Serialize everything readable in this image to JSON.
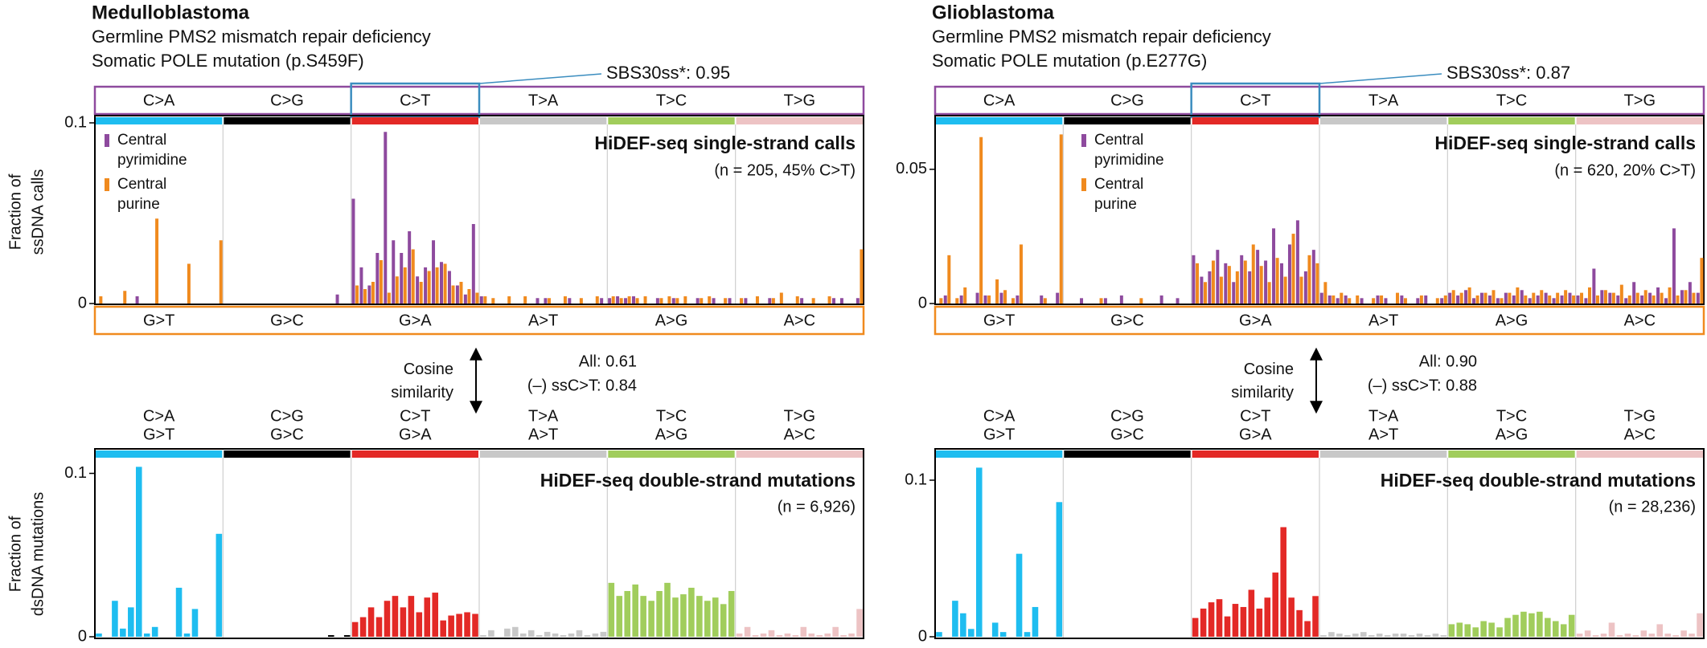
{
  "chart_data": [
    {
      "type": "bar",
      "title": "Medulloblastoma",
      "title_color": "#d7282f",
      "subtitle": [
        "Germline PMS2 mismatch repair deficiency",
        "Somatic POLE mutation (p.S459F)"
      ],
      "annotation": "SBS30ss*: 0.95",
      "annotation_color": "#3b8dbf",
      "chart_label": "HiDEF-seq single-strand calls",
      "n_label": "(n = 205, 45% C>T)",
      "ylabel": [
        "Fraction of",
        "ssDNA calls"
      ],
      "ylim": [
        0,
        0.104
      ],
      "yticks": [
        0,
        0.1
      ],
      "groups": [
        {
          "name": "C>A",
          "complement": "G>T",
          "color": "#1ebdf0"
        },
        {
          "name": "C>G",
          "complement": "G>C",
          "color": "#000000"
        },
        {
          "name": "C>T",
          "complement": "G>A",
          "color": "#e32926"
        },
        {
          "name": "T>A",
          "complement": "A>T",
          "color": "#c8c8c8"
        },
        {
          "name": "T>C",
          "complement": "A>G",
          "color": "#a1cd5c"
        },
        {
          "name": "T>G",
          "complement": "A>C",
          "color": "#edc3c4"
        }
      ],
      "series": [
        {
          "name": "Central pyrimidine",
          "color": "#8e4a9e",
          "values": [
            0,
            0,
            0,
            0,
            0,
            0.004,
            0,
            0,
            0,
            0,
            0,
            0,
            0,
            0,
            0,
            0,
            0,
            0,
            0,
            0,
            0,
            0,
            0,
            0,
            0,
            0,
            0,
            0,
            0,
            0,
            0.005,
            0,
            0.058,
            0.02,
            0.01,
            0.028,
            0.095,
            0.035,
            0.028,
            0.04,
            0.015,
            0.02,
            0.035,
            0.023,
            0.018,
            0.01,
            0.005,
            0.044,
            0.004,
            0,
            0,
            0,
            0,
            0,
            0,
            0.003,
            0.003,
            0,
            0,
            0.003,
            0,
            0,
            0,
            0.003,
            0.003,
            0.004,
            0.003,
            0.004,
            0,
            0,
            0.003,
            0,
            0.003,
            0,
            0,
            0.003,
            0,
            0.003,
            0,
            0.003,
            0,
            0.003,
            0,
            0,
            0.003,
            0,
            0,
            0,
            0.003,
            0,
            0,
            0,
            0.003,
            0.003,
            0,
            0.003
          ]
        },
        {
          "name": "Central purine",
          "color": "#f08a1e",
          "values": [
            0.004,
            0,
            0,
            0.007,
            0,
            0,
            0,
            0.047,
            0,
            0,
            0,
            0.022,
            0,
            0,
            0,
            0.035,
            0,
            0,
            0,
            0,
            0,
            0,
            0,
            0,
            0,
            0,
            0,
            0,
            0,
            0,
            0,
            0,
            0.01,
            0.008,
            0.012,
            0.024,
            0.006,
            0.015,
            0.02,
            0.03,
            0.012,
            0.018,
            0.02,
            0.022,
            0.01,
            0.012,
            0.008,
            0.006,
            0.004,
            0.003,
            0,
            0.004,
            0,
            0.004,
            0,
            0,
            0.003,
            0,
            0.004,
            0,
            0.003,
            0,
            0.004,
            0,
            0.004,
            0.003,
            0.004,
            0.003,
            0.004,
            0,
            0.003,
            0.004,
            0.003,
            0.004,
            0,
            0.003,
            0.004,
            0,
            0.003,
            0,
            0.003,
            0,
            0.004,
            0,
            0.003,
            0.006,
            0,
            0.004,
            0,
            0.003,
            0,
            0.004,
            0,
            0,
            0,
            0.03
          ]
        }
      ]
    },
    {
      "type": "bar",
      "chart_label": "HiDEF-seq double-strand mutations",
      "n_label": "(n = 6,926)",
      "ylabel": [
        "Fraction of",
        "dsDNA mutations"
      ],
      "cosine_label": "Cosine similarity",
      "cosine_all": "All: 0.61",
      "cosine_minus": "(–) ssC>T: 0.84",
      "ylim": [
        0,
        0.115
      ],
      "yticks": [
        0,
        0.1
      ],
      "groups": [
        {
          "name": "C>A",
          "complement": "G>T",
          "color": "#1ebdf0"
        },
        {
          "name": "C>G",
          "complement": "G>C",
          "color": "#000000"
        },
        {
          "name": "C>T",
          "complement": "G>A",
          "color": "#e32926"
        },
        {
          "name": "T>A",
          "complement": "A>T",
          "color": "#c8c8c8"
        },
        {
          "name": "T>C",
          "complement": "A>G",
          "color": "#a1cd5c"
        },
        {
          "name": "T>G",
          "complement": "A>C",
          "color": "#edc3c4"
        }
      ],
      "values": [
        0.002,
        0,
        0.022,
        0.005,
        0.018,
        0.104,
        0.002,
        0.006,
        0,
        0,
        0.03,
        0.002,
        0.017,
        0,
        0,
        0.063,
        0,
        0,
        0,
        0,
        0,
        0,
        0,
        0,
        0,
        0,
        0,
        0,
        0,
        0.001,
        0,
        0.001,
        0.009,
        0.012,
        0.018,
        0.012,
        0.022,
        0.025,
        0.018,
        0.025,
        0.015,
        0.024,
        0.027,
        0.01,
        0.013,
        0.014,
        0.015,
        0.014,
        0.001,
        0.004,
        0,
        0.005,
        0.006,
        0.002,
        0.004,
        0.001,
        0.003,
        0.002,
        0.001,
        0.002,
        0.004,
        0.001,
        0.002,
        0.003,
        0.033,
        0.025,
        0.028,
        0.032,
        0.025,
        0.022,
        0.028,
        0.033,
        0.024,
        0.026,
        0.03,
        0.025,
        0.022,
        0.024,
        0.02,
        0.028,
        0.002,
        0.006,
        0.001,
        0.002,
        0.004,
        0.001,
        0.002,
        0.001,
        0.006,
        0.002,
        0.001,
        0.002,
        0.006,
        0.001,
        0.002,
        0.017
      ]
    },
    {
      "type": "bar",
      "title": "Glioblastoma",
      "title_color": "#000000",
      "subtitle": [
        "Germline PMS2 mismatch repair deficiency",
        "Somatic POLE mutation (p.E277G)"
      ],
      "annotation": "SBS30ss*: 0.87",
      "annotation_color": "#3b8dbf",
      "chart_label": "HiDEF-seq single-strand calls",
      "n_label": "(n = 620, 20% C>T)",
      "ylim": [
        0,
        0.07
      ],
      "yticks": [
        0,
        0.05
      ],
      "groups": [
        {
          "name": "C>A",
          "complement": "G>T",
          "color": "#1ebdf0"
        },
        {
          "name": "C>G",
          "complement": "G>C",
          "color": "#000000"
        },
        {
          "name": "C>T",
          "complement": "G>A",
          "color": "#e32926"
        },
        {
          "name": "T>A",
          "complement": "A>T",
          "color": "#c8c8c8"
        },
        {
          "name": "T>C",
          "complement": "A>G",
          "color": "#a1cd5c"
        },
        {
          "name": "T>G",
          "complement": "A>C",
          "color": "#edc3c4"
        }
      ],
      "series": [
        {
          "name": "Central pyrimidine",
          "color": "#8e4a9e",
          "values": [
            0,
            0.003,
            0,
            0.003,
            0,
            0.004,
            0.003,
            0,
            0.004,
            0,
            0.003,
            0,
            0,
            0.003,
            0,
            0.004,
            0,
            0,
            0.002,
            0,
            0,
            0.002,
            0,
            0.003,
            0,
            0,
            0,
            0,
            0.003,
            0,
            0.002,
            0,
            0.018,
            0.01,
            0.012,
            0.02,
            0.015,
            0.008,
            0.018,
            0.012,
            0.02,
            0.016,
            0.028,
            0.015,
            0.022,
            0.031,
            0.012,
            0.02,
            0.004,
            0.003,
            0.002,
            0.003,
            0,
            0.002,
            0,
            0.003,
            0.002,
            0,
            0.003,
            0,
            0.002,
            0.003,
            0,
            0.002,
            0.004,
            0.003,
            0.005,
            0.002,
            0.004,
            0.003,
            0.002,
            0.004,
            0.003,
            0.005,
            0.002,
            0.003,
            0.004,
            0.002,
            0.003,
            0.004,
            0.003,
            0.002,
            0.013,
            0.005,
            0.004,
            0.003,
            0.002,
            0.008,
            0.003,
            0.004,
            0.006,
            0.002,
            0.028,
            0.005,
            0.008,
            0.004
          ]
        },
        {
          "name": "Central purine",
          "color": "#f08a1e",
          "values": [
            0.002,
            0.018,
            0.002,
            0.006,
            0,
            0.062,
            0.003,
            0.009,
            0.005,
            0.002,
            0.022,
            0,
            0,
            0.002,
            0,
            0.063,
            0,
            0,
            0,
            0,
            0.002,
            0,
            0,
            0,
            0,
            0.002,
            0,
            0,
            0,
            0,
            0,
            0,
            0.015,
            0.008,
            0.016,
            0.01,
            0.014,
            0.012,
            0.016,
            0.022,
            0.014,
            0.008,
            0.017,
            0.01,
            0.026,
            0.01,
            0.018,
            0.015,
            0.008,
            0.003,
            0.004,
            0.002,
            0.003,
            0,
            0.002,
            0.003,
            0,
            0.004,
            0.002,
            0,
            0.003,
            0,
            0.002,
            0.003,
            0.005,
            0.004,
            0.006,
            0.003,
            0.004,
            0.005,
            0.002,
            0.004,
            0.006,
            0.003,
            0.004,
            0.005,
            0.003,
            0.004,
            0.005,
            0.003,
            0.004,
            0.006,
            0.003,
            0.005,
            0.004,
            0.007,
            0.003,
            0.004,
            0.005,
            0.003,
            0.004,
            0.006,
            0.003,
            0.005,
            0.004,
            0.017
          ]
        }
      ]
    },
    {
      "type": "bar",
      "chart_label": "HiDEF-seq double-strand mutations",
      "n_label": "(n = 28,236)",
      "cosine_label": "Cosine similarity",
      "cosine_all": "All: 0.90",
      "cosine_minus": "(–) ssC>T: 0.88",
      "ylim": [
        0,
        0.12
      ],
      "yticks": [
        0,
        0.1
      ],
      "groups": [
        {
          "name": "C>A",
          "complement": "G>T",
          "color": "#1ebdf0"
        },
        {
          "name": "C>G",
          "complement": "G>C",
          "color": "#000000"
        },
        {
          "name": "C>T",
          "complement": "G>A",
          "color": "#e32926"
        },
        {
          "name": "T>A",
          "complement": "A>T",
          "color": "#c8c8c8"
        },
        {
          "name": "T>C",
          "complement": "A>G",
          "color": "#a1cd5c"
        },
        {
          "name": "T>G",
          "complement": "A>C",
          "color": "#edc3c4"
        }
      ],
      "values": [
        0.003,
        0,
        0.023,
        0.015,
        0.005,
        0.108,
        0,
        0.009,
        0.003,
        0,
        0.053,
        0.003,
        0.019,
        0,
        0,
        0.086,
        0,
        0,
        0,
        0,
        0,
        0,
        0,
        0,
        0,
        0,
        0,
        0,
        0,
        0,
        0,
        0,
        0.012,
        0.018,
        0.022,
        0.024,
        0.013,
        0.021,
        0.019,
        0.03,
        0.018,
        0.025,
        0.041,
        0.07,
        0.025,
        0.017,
        0.01,
        0.026,
        0.001,
        0.003,
        0.002,
        0.001,
        0.002,
        0.003,
        0.001,
        0.002,
        0.001,
        0.002,
        0.002,
        0.001,
        0.002,
        0.001,
        0.002,
        0.001,
        0.008,
        0.009,
        0.008,
        0.006,
        0.01,
        0.009,
        0.006,
        0.012,
        0.014,
        0.016,
        0.015,
        0.016,
        0.012,
        0.01,
        0.008,
        0.014,
        0.002,
        0.004,
        0.001,
        0.002,
        0.009,
        0.001,
        0.002,
        0.001,
        0.004,
        0.002,
        0.008,
        0.002,
        0.001,
        0.004,
        0.002,
        0.015
      ]
    }
  ]
}
